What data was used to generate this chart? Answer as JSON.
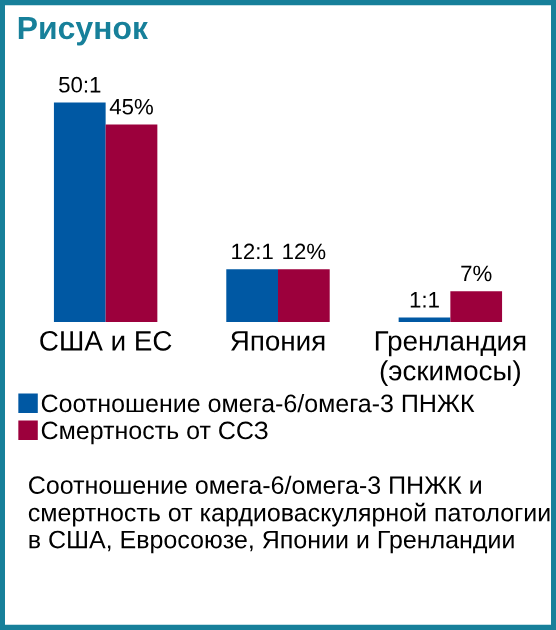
{
  "chart_data": {
    "type": "bar",
    "title": "Рисунок",
    "categories": [
      "США и ЕС",
      "Япония",
      "Гренландия\n(эскимосы)"
    ],
    "series": [
      {
        "name": "Соотношение омега-6/омега-3 ПНЖК",
        "color": "#0058a3",
        "values": [
          50,
          12,
          1
        ],
        "value_labels": [
          "50:1",
          "12:1",
          "1:1"
        ]
      },
      {
        "name": "Смертность от ССЗ",
        "color": "#9c003c",
        "values": [
          45,
          12,
          7
        ],
        "value_labels": [
          "45%",
          "12%",
          "7%"
        ]
      }
    ],
    "legend": "bottom left",
    "annotations": [
      "Соотношение омега-6/омега-3 ПНЖК и смертность от кардиоваскулярной патологии в США, Евросоюзе, Японии и Гренландии"
    ]
  }
}
